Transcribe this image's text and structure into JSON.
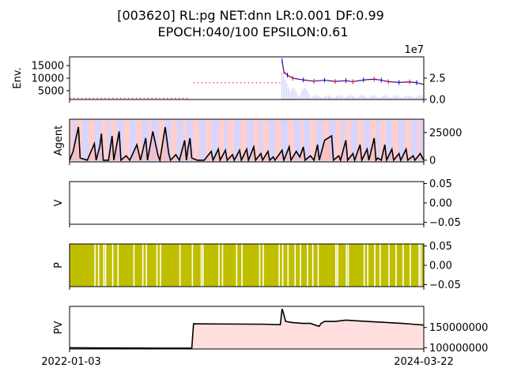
{
  "title": {
    "line1": "[003620] RL:pg NET:dnn LR:0.001 DF:0.99",
    "line2": "EPOCH:040/100 EPSILON:0.61"
  },
  "x_axis": {
    "start_label": "2022-01-03",
    "end_label": "2024-03-22"
  },
  "colors": {
    "price_up": "#ff0000",
    "price_down": "#0000ff",
    "price_line": "#4b0082",
    "volume": "#6b6bff",
    "dot_row": "#ff4040",
    "agent_line": "#000000",
    "agent_fill": "#f4b4b4",
    "bg_stripe_a": "#c8c8ff",
    "bg_stripe_b": "#ffc0c0",
    "p_bar": "#bfbf00",
    "pv_line": "#000000",
    "pv_fill": "#ffdede"
  },
  "chart_data": [
    {
      "type": "line",
      "panel": "env",
      "ylabel": "Env.",
      "left_ticks": [
        "15000",
        "10000",
        "5000"
      ],
      "left_tick_values": [
        15000,
        10000,
        5000
      ],
      "left_ylim": [
        1500,
        18500
      ],
      "right_ticks": [
        "2.5",
        "0.0"
      ],
      "right_tick_values": [
        2.5,
        0.0
      ],
      "right_ylim": [
        0,
        5
      ],
      "right_multiplier": "1e7",
      "price_series": [
        [
          0.6,
          17000
        ],
        [
          0.605,
          12500
        ],
        [
          0.615,
          11200
        ],
        [
          0.63,
          10000
        ],
        [
          0.66,
          9300
        ],
        [
          0.69,
          8800
        ],
        [
          0.72,
          9200
        ],
        [
          0.75,
          8700
        ],
        [
          0.78,
          9000
        ],
        [
          0.8,
          8600
        ],
        [
          0.83,
          9300
        ],
        [
          0.86,
          9600
        ],
        [
          0.88,
          9200
        ],
        [
          0.9,
          8600
        ],
        [
          0.93,
          8300
        ],
        [
          0.96,
          8500
        ],
        [
          0.98,
          8200
        ],
        [
          1.0,
          7500
        ]
      ],
      "dot_rows": [
        {
          "x0": 0.0,
          "x1": 0.34,
          "y": 2000
        },
        {
          "x0": 0.35,
          "x1": 0.6,
          "y": 8200
        }
      ]
    },
    {
      "type": "area",
      "panel": "agent",
      "ylabel": "Agent",
      "right_ticks": [
        "25000",
        "0"
      ],
      "right_tick_values": [
        25000,
        0
      ],
      "ylim": [
        -1500,
        37000
      ],
      "values": [
        [
          0.0,
          0
        ],
        [
          0.01,
          8000
        ],
        [
          0.025,
          30000
        ],
        [
          0.03,
          2000
        ],
        [
          0.05,
          0
        ],
        [
          0.07,
          15000
        ],
        [
          0.075,
          0
        ],
        [
          0.085,
          12000
        ],
        [
          0.09,
          24000
        ],
        [
          0.095,
          0
        ],
        [
          0.11,
          0
        ],
        [
          0.12,
          22000
        ],
        [
          0.125,
          0
        ],
        [
          0.14,
          26000
        ],
        [
          0.145,
          0
        ],
        [
          0.16,
          4000
        ],
        [
          0.17,
          0
        ],
        [
          0.19,
          14000
        ],
        [
          0.2,
          0
        ],
        [
          0.215,
          20000
        ],
        [
          0.22,
          0
        ],
        [
          0.235,
          26000
        ],
        [
          0.25,
          4000
        ],
        [
          0.255,
          0
        ],
        [
          0.27,
          30000
        ],
        [
          0.28,
          6000
        ],
        [
          0.285,
          0
        ],
        [
          0.3,
          5000
        ],
        [
          0.31,
          0
        ],
        [
          0.325,
          18000
        ],
        [
          0.33,
          0
        ],
        [
          0.335,
          12000
        ],
        [
          0.34,
          20000
        ],
        [
          0.345,
          2000
        ],
        [
          0.36,
          0
        ],
        [
          0.38,
          0
        ],
        [
          0.4,
          8000
        ],
        [
          0.405,
          0
        ],
        [
          0.42,
          10000
        ],
        [
          0.425,
          0
        ],
        [
          0.44,
          9000
        ],
        [
          0.445,
          0
        ],
        [
          0.46,
          5000
        ],
        [
          0.465,
          0
        ],
        [
          0.48,
          9000
        ],
        [
          0.485,
          0
        ],
        [
          0.5,
          10000
        ],
        [
          0.505,
          0
        ],
        [
          0.52,
          12000
        ],
        [
          0.525,
          0
        ],
        [
          0.54,
          6000
        ],
        [
          0.545,
          0
        ],
        [
          0.56,
          8000
        ],
        [
          0.565,
          0
        ],
        [
          0.575,
          3000
        ],
        [
          0.58,
          0
        ],
        [
          0.6,
          9000
        ],
        [
          0.605,
          0
        ],
        [
          0.62,
          12000
        ],
        [
          0.625,
          0
        ],
        [
          0.64,
          8000
        ],
        [
          0.65,
          3000
        ],
        [
          0.66,
          12000
        ],
        [
          0.665,
          0
        ],
        [
          0.68,
          4000
        ],
        [
          0.69,
          0
        ],
        [
          0.7,
          14000
        ],
        [
          0.705,
          0
        ],
        [
          0.72,
          18000
        ],
        [
          0.74,
          22000
        ],
        [
          0.745,
          0
        ],
        [
          0.76,
          4000
        ],
        [
          0.765,
          0
        ],
        [
          0.78,
          18000
        ],
        [
          0.785,
          0
        ],
        [
          0.8,
          6000
        ],
        [
          0.805,
          0
        ],
        [
          0.82,
          14000
        ],
        [
          0.825,
          0
        ],
        [
          0.84,
          10000
        ],
        [
          0.845,
          0
        ],
        [
          0.86,
          20000
        ],
        [
          0.865,
          0
        ],
        [
          0.87,
          2000
        ],
        [
          0.88,
          0
        ],
        [
          0.89,
          14000
        ],
        [
          0.895,
          0
        ],
        [
          0.91,
          10000
        ],
        [
          0.915,
          0
        ],
        [
          0.93,
          6000
        ],
        [
          0.935,
          0
        ],
        [
          0.95,
          10000
        ],
        [
          0.955,
          0
        ],
        [
          0.97,
          4000
        ],
        [
          0.975,
          0
        ],
        [
          0.99,
          6000
        ],
        [
          1.0,
          0
        ]
      ]
    },
    {
      "type": "line",
      "panel": "value",
      "ylabel": "V",
      "right_ticks": [
        "0.05",
        "0.00",
        "−0.05"
      ],
      "right_tick_values": [
        0.05,
        0.0,
        -0.05
      ],
      "ylim": [
        -0.055,
        0.055
      ],
      "values": []
    },
    {
      "type": "bar",
      "panel": "policy",
      "ylabel": "P",
      "right_ticks": [
        "0.05",
        "0.00",
        "−0.05"
      ],
      "right_tick_values": [
        0.05,
        0.0,
        -0.05
      ],
      "ylim": [
        -0.055,
        0.055
      ],
      "gaps": [
        0.07,
        0.08,
        0.095,
        0.1,
        0.12,
        0.135,
        0.18,
        0.205,
        0.215,
        0.245,
        0.255,
        0.31,
        0.345,
        0.37,
        0.375,
        0.42,
        0.43,
        0.47,
        0.485,
        0.535,
        0.545,
        0.59,
        0.6,
        0.615,
        0.635,
        0.65,
        0.67,
        0.685,
        0.7,
        0.75,
        0.755,
        0.78,
        0.785,
        0.83,
        0.84,
        0.86,
        0.875,
        0.9,
        0.92,
        0.94,
        0.96,
        0.985,
        0.99
      ]
    },
    {
      "type": "area",
      "panel": "pv",
      "ylabel": "PV",
      "right_ticks": [
        "150000000",
        "100000000"
      ],
      "right_tick_values": [
        150000000,
        100000000
      ],
      "ylim": [
        97000000,
        202000000
      ],
      "values": [
        [
          0.0,
          100000000
        ],
        [
          0.12,
          99500000
        ],
        [
          0.25,
          99000000
        ],
        [
          0.345,
          99000000
        ],
        [
          0.35,
          159000000
        ],
        [
          0.45,
          158500000
        ],
        [
          0.55,
          158000000
        ],
        [
          0.595,
          157000000
        ],
        [
          0.6,
          196000000
        ],
        [
          0.605,
          182000000
        ],
        [
          0.61,
          165000000
        ],
        [
          0.63,
          162000000
        ],
        [
          0.66,
          160000000
        ],
        [
          0.68,
          160000000
        ],
        [
          0.7,
          154000000
        ],
        [
          0.705,
          153000000
        ],
        [
          0.71,
          160000000
        ],
        [
          0.72,
          165000000
        ],
        [
          0.75,
          165000000
        ],
        [
          0.78,
          168000000
        ],
        [
          0.82,
          166000000
        ],
        [
          0.86,
          164000000
        ],
        [
          0.9,
          162000000
        ],
        [
          0.94,
          160000000
        ],
        [
          0.97,
          158000000
        ],
        [
          1.0,
          156000000
        ]
      ]
    }
  ]
}
